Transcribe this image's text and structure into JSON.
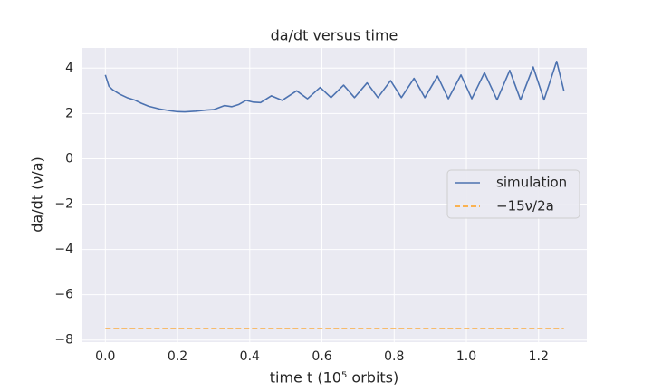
{
  "chart_data": {
    "type": "line",
    "title": "da/dt versus time",
    "xlabel": "time t    (10⁵ orbits)",
    "ylabel": "da/dt    (ν/a)",
    "xlim": [
      -0.0635,
      1.3335
    ],
    "ylim": [
      -8.09,
      4.89
    ],
    "xticks": [
      {
        "value": 0,
        "label": "0.0"
      },
      {
        "value": 0.2,
        "label": "0.2"
      },
      {
        "value": 0.4,
        "label": "0.4"
      },
      {
        "value": 0.6,
        "label": "0.6"
      },
      {
        "value": 0.8,
        "label": "0.8"
      },
      {
        "value": 1.0,
        "label": "1.0"
      },
      {
        "value": 1.2,
        "label": "1.2"
      }
    ],
    "yticks": [
      {
        "value": -8,
        "label": "−8"
      },
      {
        "value": -6,
        "label": "−6"
      },
      {
        "value": -4,
        "label": "−4"
      },
      {
        "value": -2,
        "label": "−2"
      },
      0,
      2,
      4
    ],
    "grid": true,
    "legend": "right",
    "series": [
      {
        "name": "simulation",
        "color": "#4c72b0",
        "dash": false,
        "x": [
          0,
          0.01,
          0.02,
          0.04,
          0.06,
          0.08,
          0.1,
          0.12,
          0.15,
          0.18,
          0.2,
          0.22,
          0.25,
          0.28,
          0.3,
          0.33,
          0.35,
          0.37,
          0.39,
          0.41,
          0.43,
          0.46,
          0.49,
          0.53,
          0.56,
          0.595,
          0.625,
          0.66,
          0.69,
          0.725,
          0.755,
          0.79,
          0.82,
          0.855,
          0.885,
          0.92,
          0.95,
          0.985,
          1.015,
          1.05,
          1.085,
          1.12,
          1.15,
          1.185,
          1.215,
          1.25,
          1.27
        ],
        "values": [
          3.7,
          3.2,
          3.05,
          2.85,
          2.7,
          2.6,
          2.45,
          2.32,
          2.2,
          2.12,
          2.08,
          2.07,
          2.1,
          2.15,
          2.17,
          2.35,
          2.3,
          2.4,
          2.58,
          2.5,
          2.48,
          2.78,
          2.58,
          3.0,
          2.65,
          3.15,
          2.7,
          3.25,
          2.7,
          3.35,
          2.7,
          3.45,
          2.7,
          3.55,
          2.7,
          3.65,
          2.65,
          3.7,
          2.65,
          3.8,
          2.6,
          3.9,
          2.6,
          4.05,
          2.6,
          4.3,
          3.0
        ]
      },
      {
        "name": "−15ν/2a",
        "color": "#ff9f1c",
        "dash": true,
        "x": [
          0,
          1.27
        ],
        "values": [
          -7.5,
          -7.5
        ]
      }
    ]
  }
}
